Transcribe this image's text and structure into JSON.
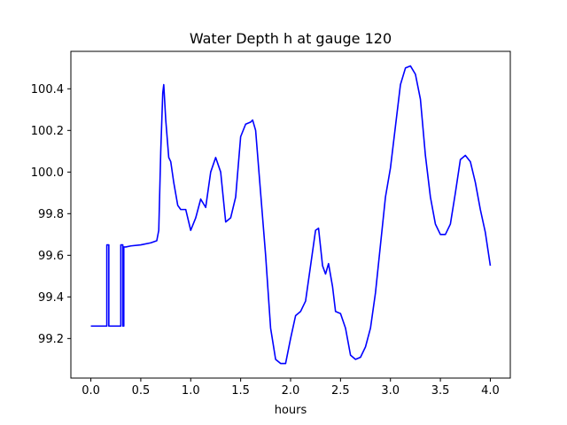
{
  "chart_data": {
    "type": "line",
    "title": "Water Depth h at gauge 120",
    "xlabel": "hours",
    "ylabel": "",
    "xlim": [
      -0.2,
      4.2
    ],
    "ylim": [
      99.01,
      100.58
    ],
    "xticks": [
      0.0,
      0.5,
      1.0,
      1.5,
      2.0,
      2.5,
      3.0,
      3.5,
      4.0
    ],
    "xtick_labels": [
      "0.0",
      "0.5",
      "1.0",
      "1.5",
      "2.0",
      "2.5",
      "3.0",
      "3.5",
      "4.0"
    ],
    "yticks": [
      99.2,
      99.4,
      99.6,
      99.8,
      100.0,
      100.2,
      100.4
    ],
    "ytick_labels": [
      "99.2",
      "99.4",
      "99.6",
      "99.8",
      "100.0",
      "100.2",
      "100.4"
    ],
    "grid": false,
    "line_color": "#0000ff",
    "series": [
      {
        "x": [
          0.0,
          0.16,
          0.16,
          0.18,
          0.18,
          0.3,
          0.3,
          0.32,
          0.32,
          0.33,
          0.33,
          0.35,
          0.35,
          0.4,
          0.5,
          0.6,
          0.66,
          0.68,
          0.7,
          0.72,
          0.73,
          0.75,
          0.78,
          0.8,
          0.83,
          0.87,
          0.9,
          0.95,
          1.0,
          1.05,
          1.1,
          1.15,
          1.2,
          1.25,
          1.3,
          1.35,
          1.4,
          1.45,
          1.5,
          1.55,
          1.6,
          1.62,
          1.65,
          1.7,
          1.75,
          1.8,
          1.85,
          1.9,
          1.95,
          2.0,
          2.05,
          2.1,
          2.15,
          2.2,
          2.25,
          2.28,
          2.32,
          2.35,
          2.38,
          2.42,
          2.45,
          2.5,
          2.55,
          2.6,
          2.65,
          2.7,
          2.75,
          2.8,
          2.85,
          2.9,
          2.95,
          3.0,
          3.05,
          3.1,
          3.15,
          3.2,
          3.25,
          3.3,
          3.35,
          3.4,
          3.45,
          3.5,
          3.55,
          3.6,
          3.65,
          3.7,
          3.75,
          3.8,
          3.85,
          3.9,
          3.95,
          4.0
        ],
        "y": [
          99.26,
          99.26,
          99.65,
          99.65,
          99.26,
          99.26,
          99.65,
          99.65,
          99.26,
          99.26,
          99.64,
          99.64,
          99.64,
          99.645,
          99.65,
          99.66,
          99.67,
          99.72,
          100.1,
          100.38,
          100.42,
          100.25,
          100.07,
          100.05,
          99.95,
          99.84,
          99.82,
          99.82,
          99.72,
          99.78,
          99.87,
          99.83,
          100.0,
          100.07,
          100.0,
          99.76,
          99.78,
          99.88,
          100.17,
          100.23,
          100.24,
          100.25,
          100.2,
          99.9,
          99.6,
          99.25,
          99.1,
          99.08,
          99.08,
          99.2,
          99.31,
          99.33,
          99.38,
          99.55,
          99.72,
          99.73,
          99.55,
          99.51,
          99.56,
          99.45,
          99.33,
          99.32,
          99.25,
          99.12,
          99.1,
          99.11,
          99.16,
          99.25,
          99.42,
          99.65,
          99.88,
          100.02,
          100.22,
          100.42,
          100.5,
          100.51,
          100.47,
          100.35,
          100.08,
          99.88,
          99.75,
          99.7,
          99.7,
          99.75,
          99.9,
          100.06,
          100.08,
          100.05,
          99.95,
          99.82,
          99.71,
          99.55
        ]
      }
    ]
  }
}
